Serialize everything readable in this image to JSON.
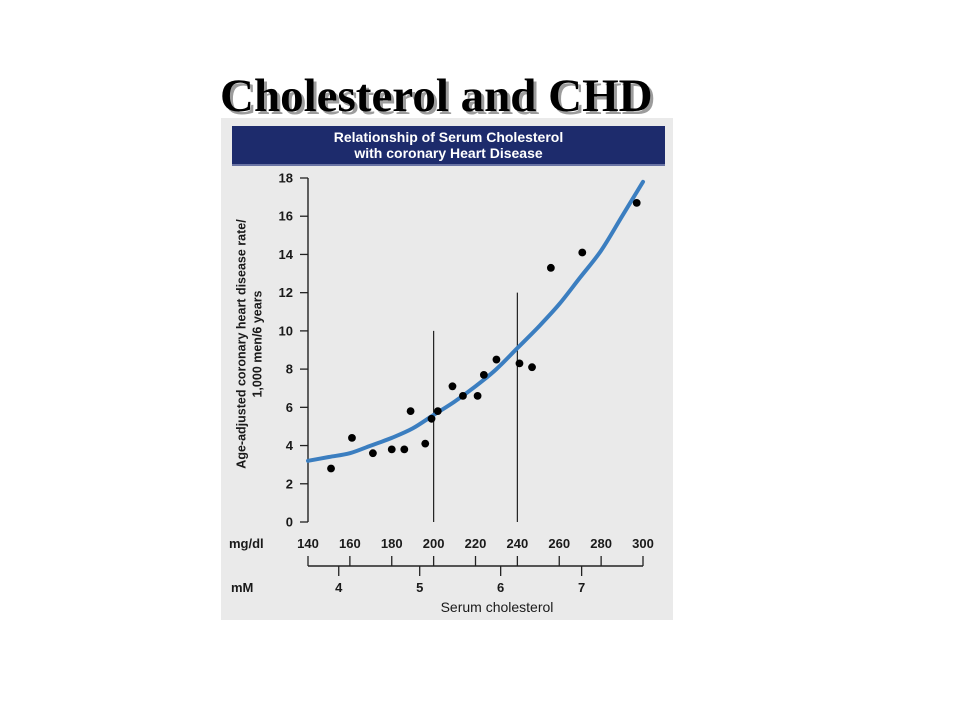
{
  "slide": {
    "title": "Cholesterol and CHD"
  },
  "chart_data": {
    "type": "scatter",
    "title_lines": [
      "Relationship of Serum Cholesterol",
      "with coronary Heart Disease"
    ],
    "ylabel_lines": [
      "Age-adjusted coronary heart disease rate/",
      "1,000 men/6 years"
    ],
    "xlabel": "Serum cholesterol",
    "x_unit_label": "mg/dl",
    "x2_unit_label": "mM",
    "xlim": [
      140,
      300
    ],
    "ylim": [
      0,
      18
    ],
    "xticks": [
      140,
      160,
      180,
      200,
      220,
      240,
      260,
      280,
      300
    ],
    "yticks": [
      0,
      2,
      4,
      6,
      8,
      10,
      12,
      14,
      16,
      18
    ],
    "x2ticks": [
      4,
      5,
      6,
      7
    ],
    "grid": false,
    "legend": "none",
    "series": [
      {
        "kind": "points",
        "x": [
          151,
          161,
          171,
          180,
          186,
          189,
          196,
          199,
          202,
          209,
          214,
          221,
          224,
          230,
          241,
          247,
          256,
          271,
          297
        ],
        "y": [
          2.8,
          4.4,
          3.6,
          3.8,
          3.8,
          5.8,
          4.1,
          5.4,
          5.8,
          7.1,
          6.6,
          6.6,
          7.7,
          8.5,
          8.3,
          8.1,
          13.3,
          14.1,
          16.7
        ]
      },
      {
        "kind": "fitted-curve",
        "x": [
          140,
          150,
          160,
          170,
          180,
          190,
          200,
          210,
          220,
          230,
          240,
          250,
          260,
          270,
          280,
          290,
          300
        ],
        "y": [
          3.2,
          3.4,
          3.6,
          4.0,
          4.4,
          4.9,
          5.6,
          6.3,
          7.1,
          8.0,
          9.1,
          10.2,
          11.4,
          12.8,
          14.2,
          16.0,
          17.8
        ]
      }
    ],
    "reference_lines": [
      {
        "x": 200,
        "y": [
          0,
          10
        ]
      },
      {
        "x": 240,
        "y": [
          0,
          12
        ]
      }
    ],
    "colors": {
      "curve": "#3b7ec0",
      "points": "#000000",
      "header_band": "#1d2b6c",
      "panel": "#eaeaea"
    }
  }
}
